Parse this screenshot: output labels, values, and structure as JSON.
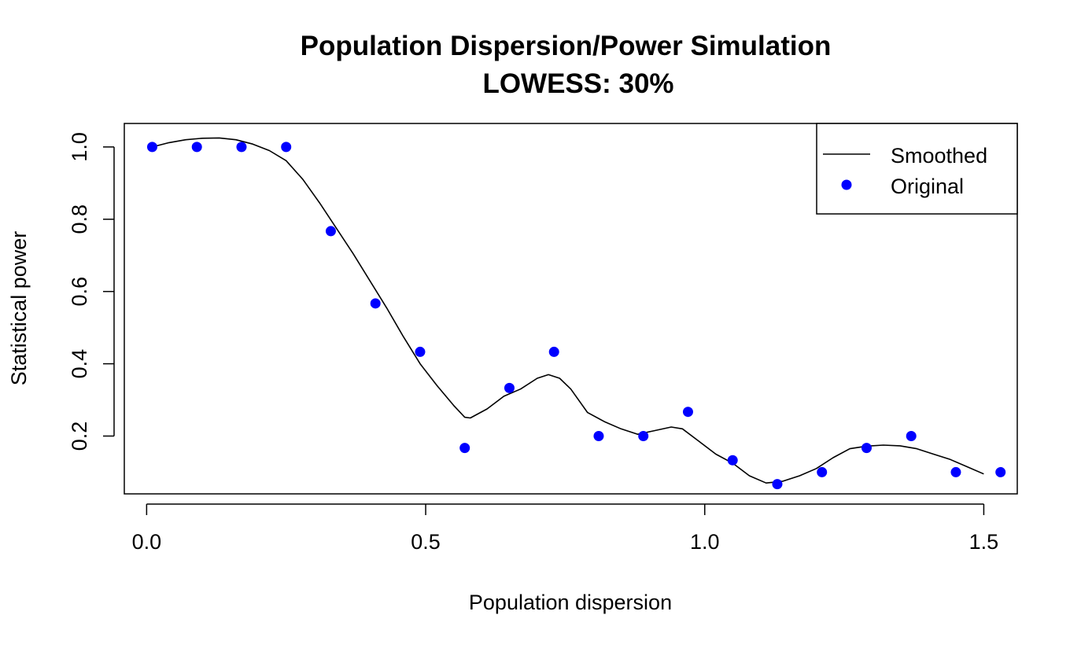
{
  "chart_data": {
    "type": "scatter",
    "title": "Population Dispersion/Power Simulation",
    "subtitle": "LOWESS: 30%",
    "xlabel": "Population dispersion",
    "ylabel": "Statistical power",
    "xlim": [
      -0.04,
      1.56
    ],
    "ylim": [
      0.04,
      1.065
    ],
    "x_ticks": [
      0.0,
      0.5,
      1.0,
      1.5
    ],
    "x_tick_labels": [
      "0.0",
      "0.5",
      "1.0",
      "1.5"
    ],
    "y_ticks": [
      0.2,
      0.4,
      0.6,
      0.8,
      1.0
    ],
    "y_tick_labels": [
      "0.2",
      "0.4",
      "0.6",
      "0.8",
      "1.0"
    ],
    "grid": false,
    "legend_position": "top-right",
    "series": [
      {
        "name": "Smoothed",
        "kind": "line",
        "color": "#000000",
        "x": [
          0.01,
          0.04,
          0.07,
          0.1,
          0.13,
          0.16,
          0.19,
          0.22,
          0.25,
          0.28,
          0.31,
          0.34,
          0.37,
          0.4,
          0.43,
          0.46,
          0.49,
          0.52,
          0.55,
          0.57,
          0.58,
          0.61,
          0.64,
          0.67,
          0.7,
          0.72,
          0.74,
          0.76,
          0.79,
          0.82,
          0.85,
          0.88,
          0.91,
          0.94,
          0.96,
          0.99,
          1.02,
          1.05,
          1.08,
          1.11,
          1.14,
          1.17,
          1.2,
          1.23,
          1.26,
          1.29,
          1.32,
          1.35,
          1.38,
          1.41,
          1.44,
          1.47,
          1.5
        ],
        "y": [
          1.0,
          1.012,
          1.02,
          1.024,
          1.025,
          1.02,
          1.008,
          0.99,
          0.962,
          0.91,
          0.845,
          0.775,
          0.705,
          0.63,
          0.555,
          0.475,
          0.4,
          0.34,
          0.285,
          0.252,
          0.25,
          0.275,
          0.31,
          0.33,
          0.36,
          0.37,
          0.36,
          0.33,
          0.265,
          0.24,
          0.22,
          0.205,
          0.215,
          0.225,
          0.22,
          0.185,
          0.15,
          0.125,
          0.09,
          0.07,
          0.075,
          0.09,
          0.11,
          0.14,
          0.165,
          0.172,
          0.175,
          0.173,
          0.165,
          0.15,
          0.135,
          0.115,
          0.095
        ]
      },
      {
        "name": "Original",
        "kind": "points",
        "color": "#0000ff",
        "x": [
          0.01,
          0.09,
          0.17,
          0.25,
          0.33,
          0.41,
          0.49,
          0.57,
          0.65,
          0.73,
          0.81,
          0.89,
          0.97,
          1.05,
          1.13,
          1.21,
          1.29,
          1.37,
          1.45,
          1.53
        ],
        "y": [
          1.0,
          1.0,
          1.0,
          1.0,
          0.767,
          0.567,
          0.433,
          0.167,
          0.333,
          0.433,
          0.2,
          0.2,
          0.267,
          0.133,
          0.067,
          0.1,
          0.167,
          0.2,
          0.1,
          0.1
        ]
      }
    ]
  }
}
